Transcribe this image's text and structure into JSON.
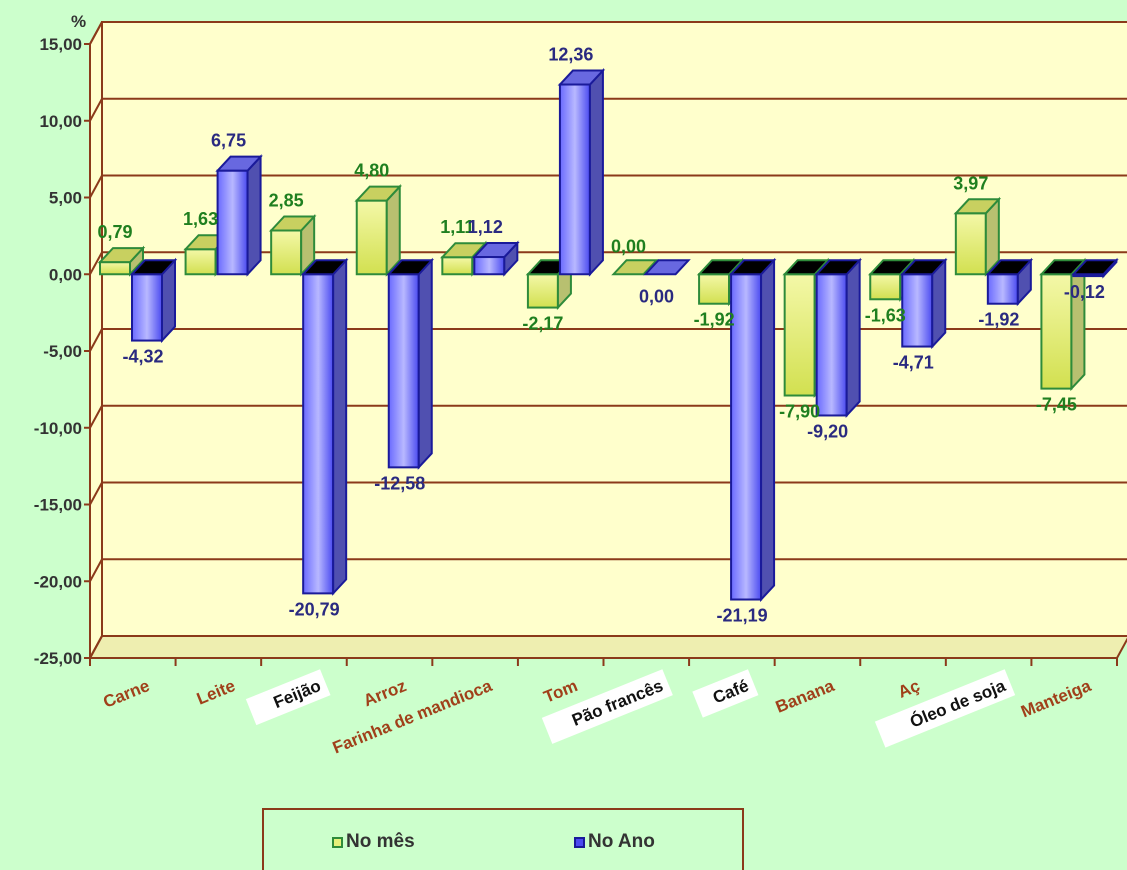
{
  "chart_data": {
    "type": "bar",
    "title": "",
    "ylabel": "%",
    "xlabel": "",
    "ylim": [
      -25,
      15
    ],
    "yticks": [
      "15,00",
      "10,00",
      "5,00",
      "0,00",
      "-5,00",
      "-10,00",
      "-15,00",
      "-20,00",
      "-25,00"
    ],
    "categories": [
      "Carne",
      "Leite",
      "Feijão",
      "Arroz",
      "Farinha de mandioca",
      "Tom",
      "Pão francês",
      "Café",
      "Banana",
      "Aç",
      "Óleo de soja",
      "Manteiga"
    ],
    "series": [
      {
        "name": "No mês",
        "values": [
          0.79,
          1.63,
          2.85,
          4.8,
          1.11,
          -2.17,
          0.0,
          -1.92,
          -7.9,
          -1.63,
          3.97,
          -7.45
        ],
        "labels": [
          "0,79",
          "1,63",
          "2,85",
          "4,80",
          "1,11",
          "-2,17",
          "0,00",
          "-1,92",
          "-7,90",
          "-1,63",
          "3,97",
          "-7,45"
        ]
      },
      {
        "name": "No Ano",
        "values": [
          -4.32,
          6.75,
          -20.79,
          -12.58,
          1.12,
          12.36,
          0.0,
          -21.19,
          -9.2,
          -4.71,
          -1.92,
          -0.12
        ],
        "labels": [
          "-4,32",
          "6,75",
          "-20,79",
          "-12,58",
          "1,12",
          "12,36",
          "0,00",
          "-21,19",
          "-9,20",
          "-4,71",
          "-1,92",
          "-0,12"
        ]
      }
    ],
    "grid": true,
    "legend": "bottom",
    "colors": {
      "background": "#ccffcc",
      "plot_area": "#ffffcc",
      "axis": "#8b3a1a",
      "mes_fill": "#e6f07a",
      "mes_border": "#2e8b3a",
      "ano_fill": "#4a4af0",
      "ano_border": "#1a1a9a",
      "mes_label": "#1f7f1f",
      "ano_label": "#2a2a80",
      "category_label": "#a0401a"
    }
  },
  "legend": {
    "mes_label": "No mês",
    "ano_label": "No Ano"
  }
}
